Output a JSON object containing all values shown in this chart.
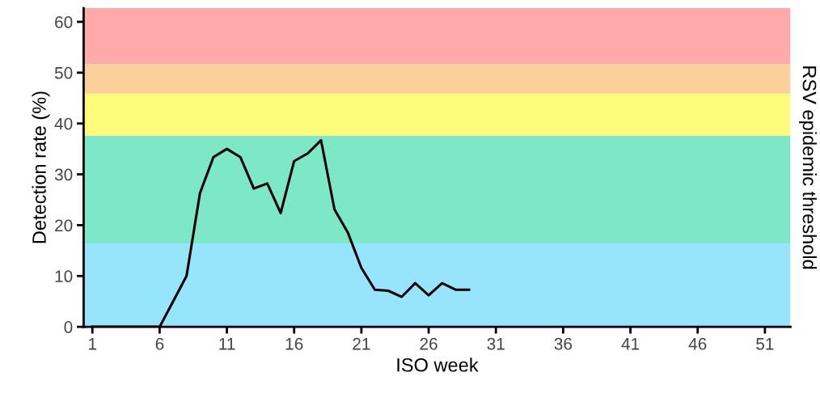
{
  "chart_data": {
    "type": "line",
    "xlabel": "ISO week",
    "ylabel": "Detection rate (%)",
    "y2label": "RSV epidemic threshold",
    "x": [
      1,
      2,
      3,
      4,
      5,
      6,
      7,
      8,
      9,
      10,
      11,
      12,
      13,
      14,
      15,
      16,
      17,
      18,
      19,
      20,
      21,
      22,
      23,
      24,
      25,
      26,
      27,
      28,
      29
    ],
    "series": [
      {
        "color": "#000000",
        "values": [
          0,
          0,
          0,
          0,
          0,
          0,
          5.0,
          10.0,
          26.3,
          33.4,
          35.0,
          33.4,
          27.2,
          28.2,
          22.4,
          32.6,
          34.1,
          36.7,
          23.1,
          18.5,
          11.6,
          7.3,
          7.1,
          5.9,
          8.6,
          6.2,
          8.6,
          7.3,
          7.3
        ]
      }
    ],
    "xlim": [
      0.35,
      52.9
    ],
    "xticks": [
      1,
      6,
      11,
      16,
      21,
      26,
      31,
      36,
      41,
      46,
      51
    ],
    "ylim": [
      0,
      62.7
    ],
    "yticks": [
      0,
      10,
      20,
      30,
      40,
      50,
      60
    ],
    "bands": [
      {
        "axis": "y",
        "from": 0,
        "to": 16.4,
        "color": "#97e4fd"
      },
      {
        "axis": "y",
        "from": 16.4,
        "to": 37.6,
        "color": "#7de8c8"
      },
      {
        "axis": "y",
        "from": 37.6,
        "to": 45.9,
        "color": "#fdfc7a"
      },
      {
        "axis": "y",
        "from": 45.9,
        "to": 51.7,
        "color": "#fbd09a"
      },
      {
        "axis": "y",
        "from": 51.7,
        "to": 62.7,
        "color": "#ffaaaa"
      }
    ],
    "grid": false,
    "legend": false,
    "marker": "none",
    "line_style": "solid"
  }
}
